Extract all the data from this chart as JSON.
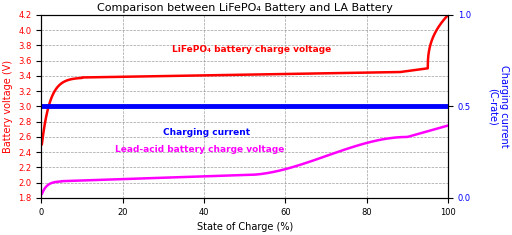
{
  "title": "Comparison between LiFePO₄ Battery and LA Battery",
  "xlabel": "State of Charge (%)",
  "ylabel_left": "Battery voltage (V)",
  "ylabel_right": "Charging current\n(C-rate)",
  "ylim_left": [
    1.8,
    4.2
  ],
  "ylim_right": [
    0.0,
    1.0
  ],
  "xlim": [
    0,
    100
  ],
  "yticks_left": [
    1.8,
    2.0,
    2.2,
    2.4,
    2.6,
    2.8,
    3.0,
    3.2,
    3.4,
    3.6,
    3.8,
    4.0,
    4.2
  ],
  "yticks_right": [
    0.0,
    0.5,
    1.0
  ],
  "xticks": [
    0,
    20,
    40,
    60,
    80,
    100
  ],
  "lifepo4_label": "LiFePO₄ battery charge voltage",
  "lead_acid_label": "Lead-acid battery charge voltage",
  "current_label": "Charging current",
  "lifepo4_color": "#ff0000",
  "lead_acid_color": "#ff00ff",
  "current_color": "#0000ff",
  "background_color": "#ffffff",
  "grid_color": "#888888",
  "title_fontsize": 8,
  "axis_label_fontsize": 7,
  "tick_fontsize": 6,
  "annotation_fontsize": 6.5,
  "linewidth_main": 1.8,
  "linewidth_current": 3.5
}
